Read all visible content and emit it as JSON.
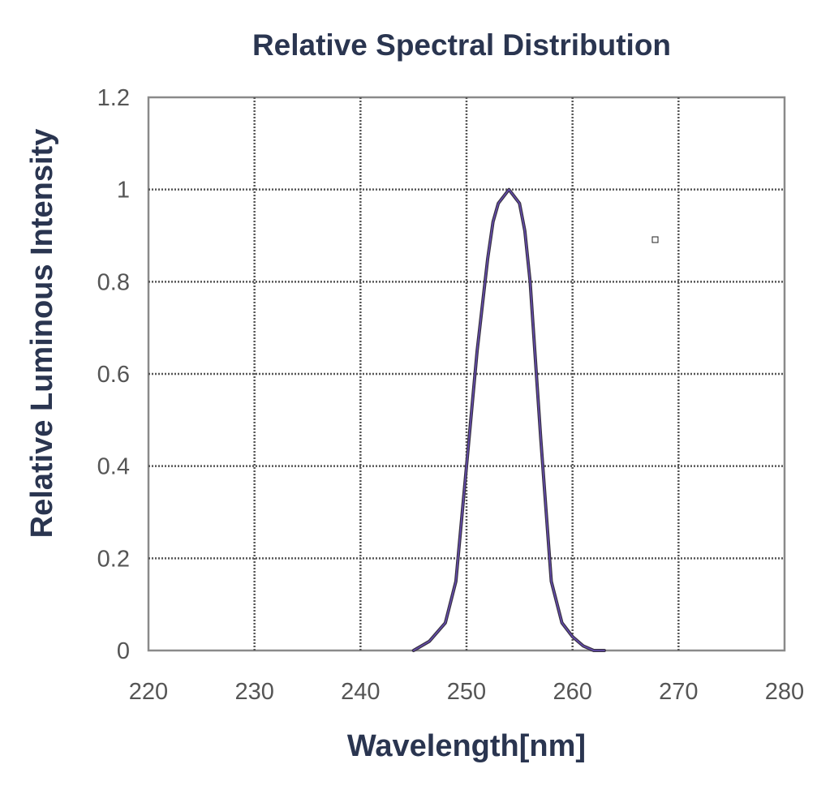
{
  "chart_data": {
    "type": "line",
    "title": "Relative Spectral Distribution",
    "xlabel": "Wavelength[nm]",
    "ylabel": "Relative Luminous Intensity",
    "xlim": [
      220,
      280
    ],
    "ylim": [
      0,
      1.2
    ],
    "x_ticks": [
      220,
      230,
      240,
      250,
      260,
      270,
      280
    ],
    "x_tick_labels": [
      "220",
      "230",
      "240",
      "250",
      "260",
      "270",
      "280"
    ],
    "y_ticks": [
      0,
      0.2,
      0.4,
      0.6,
      0.8,
      1.0,
      1.2
    ],
    "y_tick_labels": [
      "0",
      "0.2",
      "0.4",
      "0.6",
      "0.8",
      "1",
      "1.2"
    ],
    "grid": true,
    "series": [
      {
        "name": "Relative Spectral Distribution",
        "x": [
          245,
          246.5,
          248,
          249,
          250,
          251,
          252,
          252.5,
          253,
          254,
          255,
          255.5,
          256,
          257,
          258,
          259,
          260,
          261,
          262,
          263
        ],
        "y": [
          0,
          0.02,
          0.06,
          0.15,
          0.4,
          0.65,
          0.85,
          0.93,
          0.97,
          1.0,
          0.97,
          0.91,
          0.8,
          0.46,
          0.15,
          0.06,
          0.03,
          0.01,
          0.0,
          0.0
        ]
      }
    ]
  }
}
